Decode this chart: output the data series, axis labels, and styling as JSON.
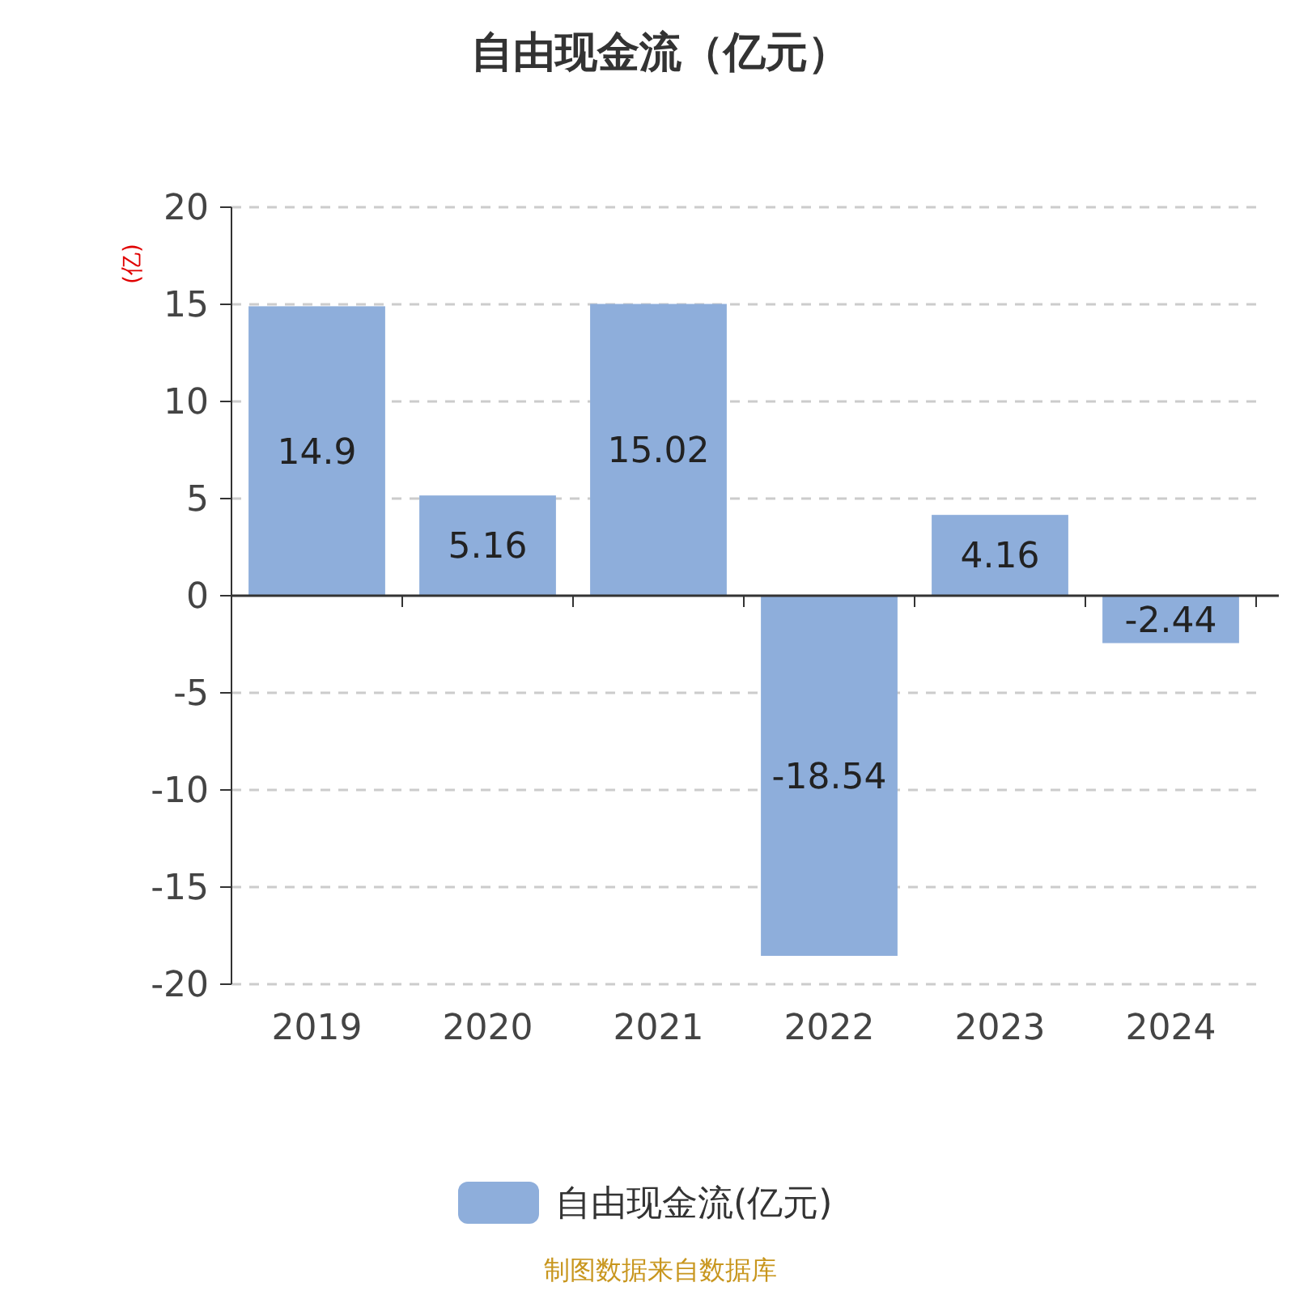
{
  "chart_data": {
    "type": "bar",
    "title": "自由现金流（亿元）",
    "ylabel": "(亿)",
    "categories": [
      "2019",
      "2020",
      "2021",
      "2022",
      "2023",
      "2024"
    ],
    "series": [
      {
        "name": "自由现金流(亿元)",
        "color": "#8eaedb",
        "values": [
          14.9,
          5.16,
          15.02,
          -18.54,
          4.16,
          -2.44
        ]
      }
    ],
    "ylim": [
      -20,
      20
    ],
    "yticks": [
      -20,
      -15,
      -10,
      -5,
      0,
      5,
      10,
      15,
      20
    ],
    "grid": "y",
    "legend": "bottom",
    "data_labels": true,
    "annotations": [
      "制图数据来自数据库"
    ]
  }
}
